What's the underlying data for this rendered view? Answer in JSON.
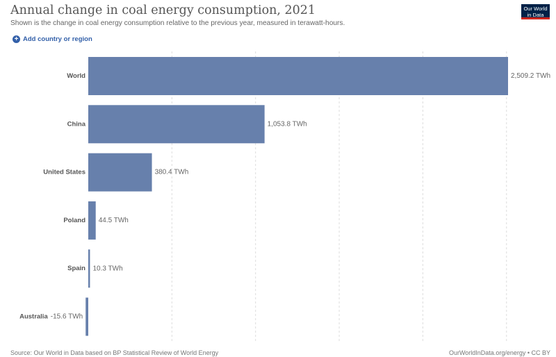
{
  "header": {
    "title": "Annual change in coal energy consumption, 2021",
    "subtitle": "Shown is the change in coal energy consumption relative to the previous year, measured in terawatt-hours.",
    "logo_line1": "Our World",
    "logo_line2": "in Data"
  },
  "controls": {
    "add_label": "Add country or region",
    "add_icon": "plus-circle-icon"
  },
  "footer": {
    "source": "Source: Our World in Data based on BP Statistical Review of World Energy",
    "license": "OurWorldInData.org/energy • CC BY"
  },
  "colors": {
    "bar": "#6780ac",
    "grid": "#dddddd",
    "accent": "#3360a9",
    "logo_bg": "#002147",
    "logo_bar": "#ce261e"
  },
  "chart_data": {
    "type": "bar",
    "orientation": "horizontal",
    "title": "Annual change in coal energy consumption, 2021",
    "categories": [
      "World",
      "China",
      "United States",
      "Poland",
      "Spain",
      "Australia"
    ],
    "values": [
      2509.2,
      1053.8,
      380.4,
      44.5,
      10.3,
      -15.6
    ],
    "value_labels": [
      "2,509.2 TWh",
      "1,053.8 TWh",
      "380.4 TWh",
      "44.5 TWh",
      "10.3 TWh",
      "-15.6 TWh"
    ],
    "unit": "TWh",
    "xlim": [
      -15.6,
      2509.2
    ],
    "gridlines": [
      0,
      500,
      1000,
      1500,
      2000,
      2500
    ],
    "grid": true,
    "legend": "none"
  }
}
